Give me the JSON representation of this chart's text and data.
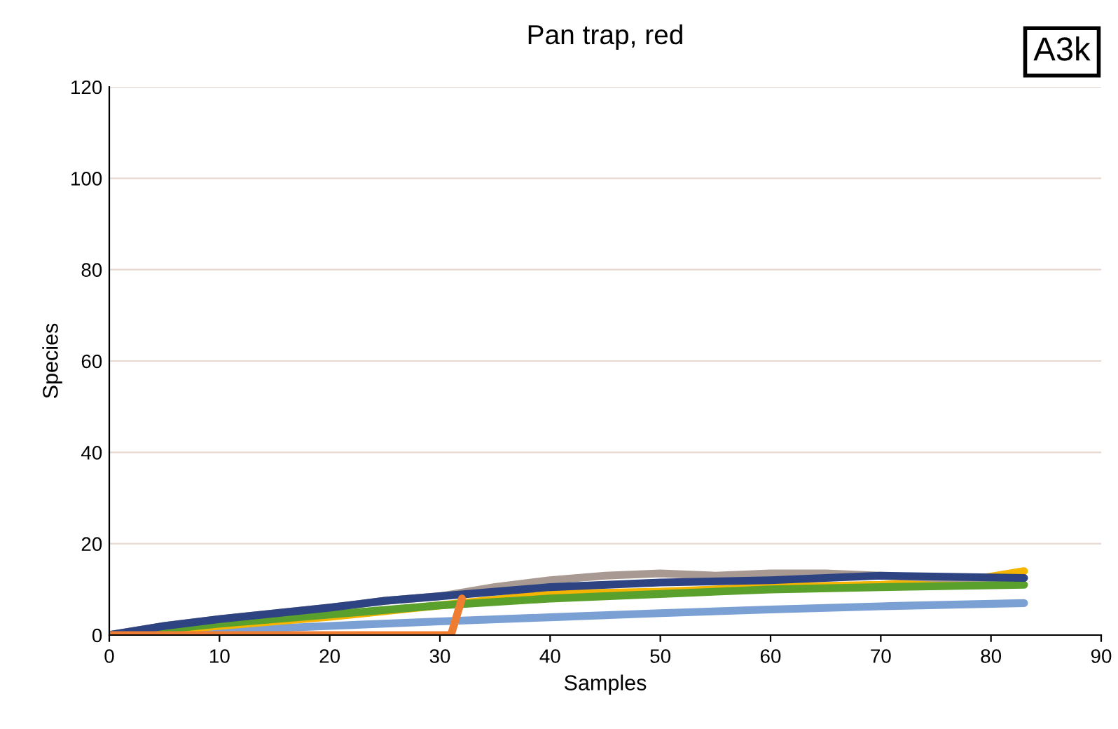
{
  "chart_data": {
    "type": "line",
    "title": "Pan trap, red",
    "xlabel": "Samples",
    "ylabel": "Species",
    "annotations": [
      "A3k"
    ],
    "xlim": [
      0,
      90
    ],
    "xticks": [
      0,
      10,
      20,
      30,
      40,
      50,
      60,
      70,
      80,
      90
    ],
    "ylim": [
      0,
      120
    ],
    "yticks": [
      0,
      20,
      40,
      60,
      80,
      100,
      120
    ],
    "grid": "y",
    "marker": "none",
    "line_style": "solid",
    "series": [
      {
        "color": "#7aa0d4",
        "x": [
          0,
          10,
          20,
          30,
          40,
          50,
          60,
          70,
          83
        ],
        "values": [
          0,
          1,
          2,
          3,
          3.9,
          4.8,
          5.6,
          6.3,
          7
        ]
      },
      {
        "color": "#f4b400",
        "x": [
          0,
          10,
          20,
          30,
          40,
          50,
          60,
          70,
          78,
          83
        ],
        "values": [
          0,
          2,
          4,
          6.5,
          9,
          9.5,
          10.5,
          11,
          12,
          14
        ]
      },
      {
        "color": "#a89a92",
        "x": [
          0,
          5,
          10,
          20,
          25,
          30,
          35,
          40,
          45,
          50,
          55,
          60,
          65,
          70,
          75,
          83
        ],
        "values": [
          0,
          2,
          3.5,
          6,
          7.5,
          8.5,
          10.5,
          12,
          13,
          13.5,
          13,
          13.5,
          13.5,
          13,
          12.5,
          12.5
        ]
      },
      {
        "color": "#5aa02c",
        "x": [
          0,
          10,
          20,
          30,
          40,
          50,
          60,
          70,
          83
        ],
        "values": [
          0,
          2.5,
          4.5,
          6.5,
          8,
          9,
          10,
          10.5,
          11
        ]
      },
      {
        "color": "#2e4482",
        "x": [
          0,
          5,
          10,
          20,
          25,
          30,
          40,
          50,
          60,
          70,
          83
        ],
        "values": [
          0,
          2,
          3.5,
          6,
          7.5,
          8.5,
          10.5,
          11.5,
          12,
          13,
          12.5
        ]
      },
      {
        "color": "#ee7d31",
        "x": [
          0,
          31,
          32
        ],
        "values": [
          0,
          0,
          8
        ]
      }
    ]
  }
}
